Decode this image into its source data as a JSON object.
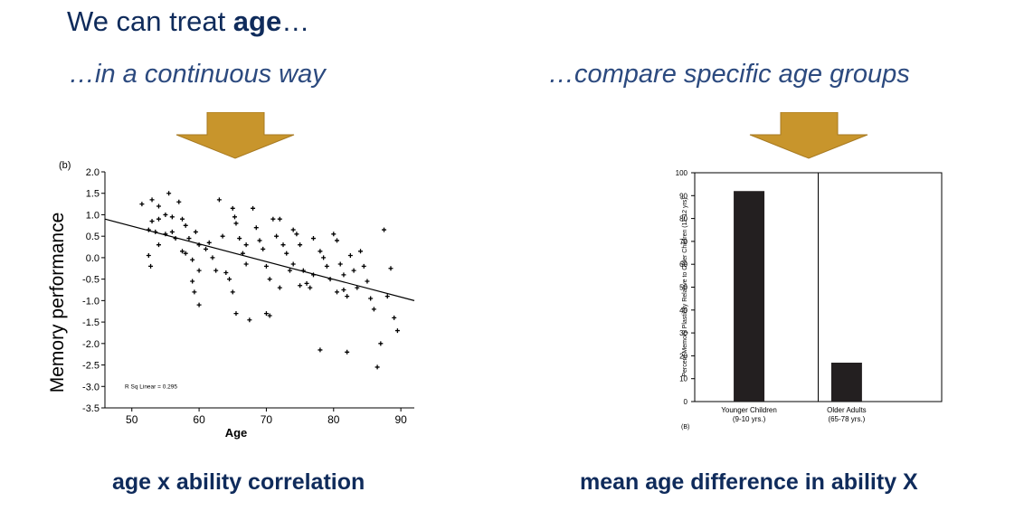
{
  "slide": {
    "title_prefix": "We can treat ",
    "title_bold": "age",
    "title_suffix": "…",
    "left_subtitle": "…in a continuous way",
    "right_subtitle": "…compare specific age groups",
    "left_caption": "age x ability correlation",
    "right_caption": "mean age difference in ability X",
    "arrow_color": "#c8952c",
    "text_color": "#0f2b5b"
  },
  "chart_data": [
    {
      "type": "scatter",
      "panel_label": "(b)",
      "xlabel": "Age",
      "ylabel": "Memory performance",
      "xlim": [
        46,
        92
      ],
      "ylim": [
        -3.5,
        2.0
      ],
      "xticks": [
        50,
        60,
        70,
        80,
        90
      ],
      "yticks": [
        -3.5,
        -3.0,
        -2.5,
        -2.0,
        -1.5,
        -1.0,
        -0.5,
        0.0,
        0.5,
        1.0,
        1.5,
        2.0
      ],
      "ytick_labels": [
        "-3.5",
        "-3.0",
        "-2.5",
        "-2.0",
        "-1.5",
        "-1.0",
        "-0.5",
        "0.0",
        "0.5",
        "1.0",
        "1.5",
        "2.0"
      ],
      "annotation": "R Sq Linear = 0.295",
      "fit_line": {
        "x": [
          46,
          92
        ],
        "y": [
          0.9,
          -1.0
        ]
      },
      "points": [
        [
          51.5,
          1.25
        ],
        [
          53,
          1.35
        ],
        [
          54,
          1.2
        ],
        [
          55.5,
          1.5
        ],
        [
          57,
          1.3
        ],
        [
          53,
          0.85
        ],
        [
          54,
          0.9
        ],
        [
          55,
          1.0
        ],
        [
          56,
          0.95
        ],
        [
          57.5,
          0.9
        ],
        [
          52.5,
          0.65
        ],
        [
          53.5,
          0.6
        ],
        [
          55,
          0.55
        ],
        [
          56.5,
          0.45
        ],
        [
          58.5,
          0.45
        ],
        [
          59.5,
          0.6
        ],
        [
          60,
          0.3
        ],
        [
          58,
          0.1
        ],
        [
          59,
          -0.05
        ],
        [
          60,
          -0.3
        ],
        [
          52.5,
          0.05
        ],
        [
          52.8,
          -0.2
        ],
        [
          54,
          0.3
        ],
        [
          57.5,
          0.15
        ],
        [
          59,
          -0.55
        ],
        [
          59.3,
          -0.8
        ],
        [
          60,
          -1.1
        ],
        [
          61.5,
          0.35
        ],
        [
          62,
          0.0
        ],
        [
          62.5,
          -0.3
        ],
        [
          63,
          1.35
        ],
        [
          64,
          -0.35
        ],
        [
          64.5,
          -0.5
        ],
        [
          65,
          1.15
        ],
        [
          65.3,
          0.95
        ],
        [
          65.5,
          0.8
        ],
        [
          66,
          0.45
        ],
        [
          66.5,
          0.1
        ],
        [
          67,
          -0.15
        ],
        [
          65,
          -0.8
        ],
        [
          65.5,
          -1.3
        ],
        [
          67.5,
          -1.45
        ],
        [
          68,
          1.15
        ],
        [
          68.5,
          0.7
        ],
        [
          69,
          0.4
        ],
        [
          69.5,
          0.2
        ],
        [
          70,
          -0.2
        ],
        [
          70.5,
          -0.5
        ],
        [
          70,
          -1.3
        ],
        [
          70.5,
          -1.35
        ],
        [
          71,
          0.9
        ],
        [
          71.5,
          0.5
        ],
        [
          72,
          0.9
        ],
        [
          72.5,
          0.3
        ],
        [
          73,
          0.1
        ],
        [
          73.5,
          -0.3
        ],
        [
          72,
          -0.7
        ],
        [
          74,
          0.65
        ],
        [
          74.5,
          0.55
        ],
        [
          75,
          0.3
        ],
        [
          75.5,
          -0.3
        ],
        [
          76,
          -0.6
        ],
        [
          76.5,
          -0.7
        ],
        [
          75,
          -0.65
        ],
        [
          77,
          0.45
        ],
        [
          78,
          0.15
        ],
        [
          78.5,
          0.0
        ],
        [
          79,
          -0.2
        ],
        [
          79.5,
          -0.5
        ],
        [
          78,
          -2.15
        ],
        [
          80,
          0.55
        ],
        [
          80.5,
          0.4
        ],
        [
          81,
          -0.15
        ],
        [
          81.5,
          -0.4
        ],
        [
          80.5,
          -0.8
        ],
        [
          81.5,
          -0.75
        ],
        [
          82,
          -0.9
        ],
        [
          82.5,
          0.05
        ],
        [
          83,
          -0.3
        ],
        [
          82,
          -2.2
        ],
        [
          84,
          0.15
        ],
        [
          84.5,
          -0.2
        ],
        [
          85,
          -0.55
        ],
        [
          85.5,
          -0.95
        ],
        [
          86,
          -1.2
        ],
        [
          86.5,
          -2.55
        ],
        [
          87,
          -2.0
        ],
        [
          87.5,
          0.65
        ],
        [
          88,
          -0.9
        ],
        [
          88.5,
          -0.25
        ],
        [
          89,
          -1.4
        ],
        [
          89.5,
          -1.7
        ],
        [
          83.5,
          -0.7
        ],
        [
          67,
          0.3
        ],
        [
          61,
          0.2
        ],
        [
          63.5,
          0.5
        ],
        [
          58,
          0.75
        ],
        [
          56,
          0.6
        ],
        [
          74,
          -0.15
        ],
        [
          77,
          -0.4
        ]
      ]
    },
    {
      "type": "bar",
      "panel_label": "(B)",
      "ylabel": "Percent Memory Plasticity Relative to Older Children (11-12 yrs)",
      "ylim": [
        0,
        100
      ],
      "yticks": [
        0,
        10,
        20,
        30,
        40,
        50,
        60,
        70,
        80,
        90,
        100
      ],
      "ytick_labels": [
        "0",
        "10",
        "20",
        "30",
        "40",
        "50",
        "60",
        "70",
        "80",
        "90",
        "100"
      ],
      "categories": [
        "Younger Children\n(9-10 yrs.)",
        "Older Adults\n(65-78 yrs.)"
      ],
      "category_line1": [
        "Younger Children",
        "Older Adults"
      ],
      "category_line2": [
        "(9-10 yrs.)",
        "(65-78 yrs.)"
      ],
      "values": [
        92,
        17
      ]
    }
  ]
}
